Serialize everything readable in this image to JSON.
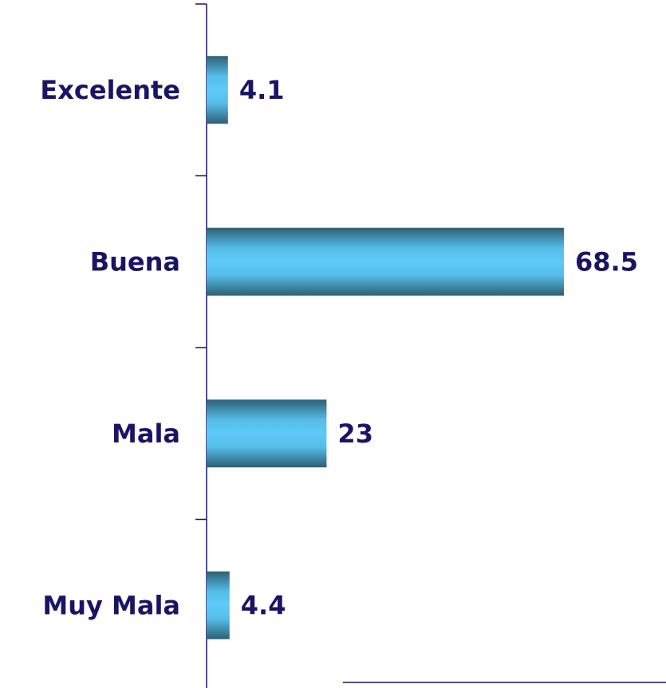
{
  "chart_data": {
    "type": "bar",
    "orientation": "horizontal",
    "categories": [
      "Excelente",
      "Buena",
      "Mala",
      "Muy Mala"
    ],
    "values": [
      4.1,
      68.5,
      23,
      4.4
    ]
  }
}
